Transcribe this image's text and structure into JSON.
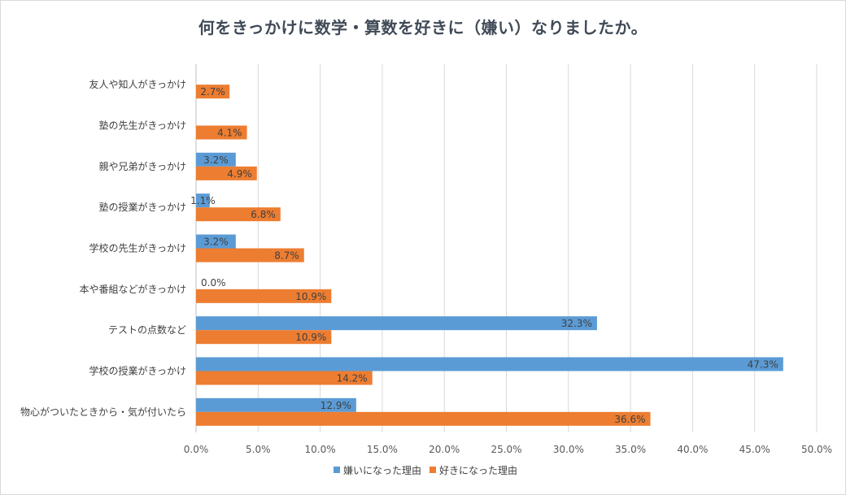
{
  "chart_data": {
    "type": "bar",
    "orientation": "horizontal",
    "title": "何をきっかけに数学・算数を好きに（嫌い）なりましたか。",
    "categories": [
      "友人や知人がきっかけ",
      "塾の先生がきっかけ",
      "親や兄弟がきっかけ",
      "塾の授業がきっかけ",
      "学校の先生がきっかけ",
      "本や番組などがきっかけ",
      "テストの点数など",
      "学校の授業がきっかけ",
      "物心がついたときから・気が付いたら"
    ],
    "series": [
      {
        "name": "嫌いになった理由",
        "color": "#5b9bd5",
        "values": [
          null,
          null,
          3.2,
          1.1,
          3.2,
          0.0,
          32.3,
          47.3,
          12.9
        ],
        "labels": [
          null,
          null,
          "3.2%",
          "1.1%",
          "3.2%",
          "0.0%",
          "32.3%",
          "47.3%",
          "12.9%"
        ]
      },
      {
        "name": "好きになった理由",
        "color": "#ed7d31",
        "values": [
          2.7,
          4.1,
          4.9,
          6.8,
          8.7,
          10.9,
          10.9,
          14.2,
          36.6
        ],
        "labels": [
          "2.7%",
          "4.1%",
          "4.9%",
          "6.8%",
          "8.7%",
          "10.9%",
          "10.9%",
          "14.2%",
          "36.6%"
        ]
      }
    ],
    "xlim": [
      0,
      50
    ],
    "xticks": [
      "0.0%",
      "5.0%",
      "10.0%",
      "15.0%",
      "20.0%",
      "25.0%",
      "30.0%",
      "35.0%",
      "40.0%",
      "45.0%",
      "50.0%"
    ],
    "grid": true,
    "legend_position": "bottom"
  }
}
